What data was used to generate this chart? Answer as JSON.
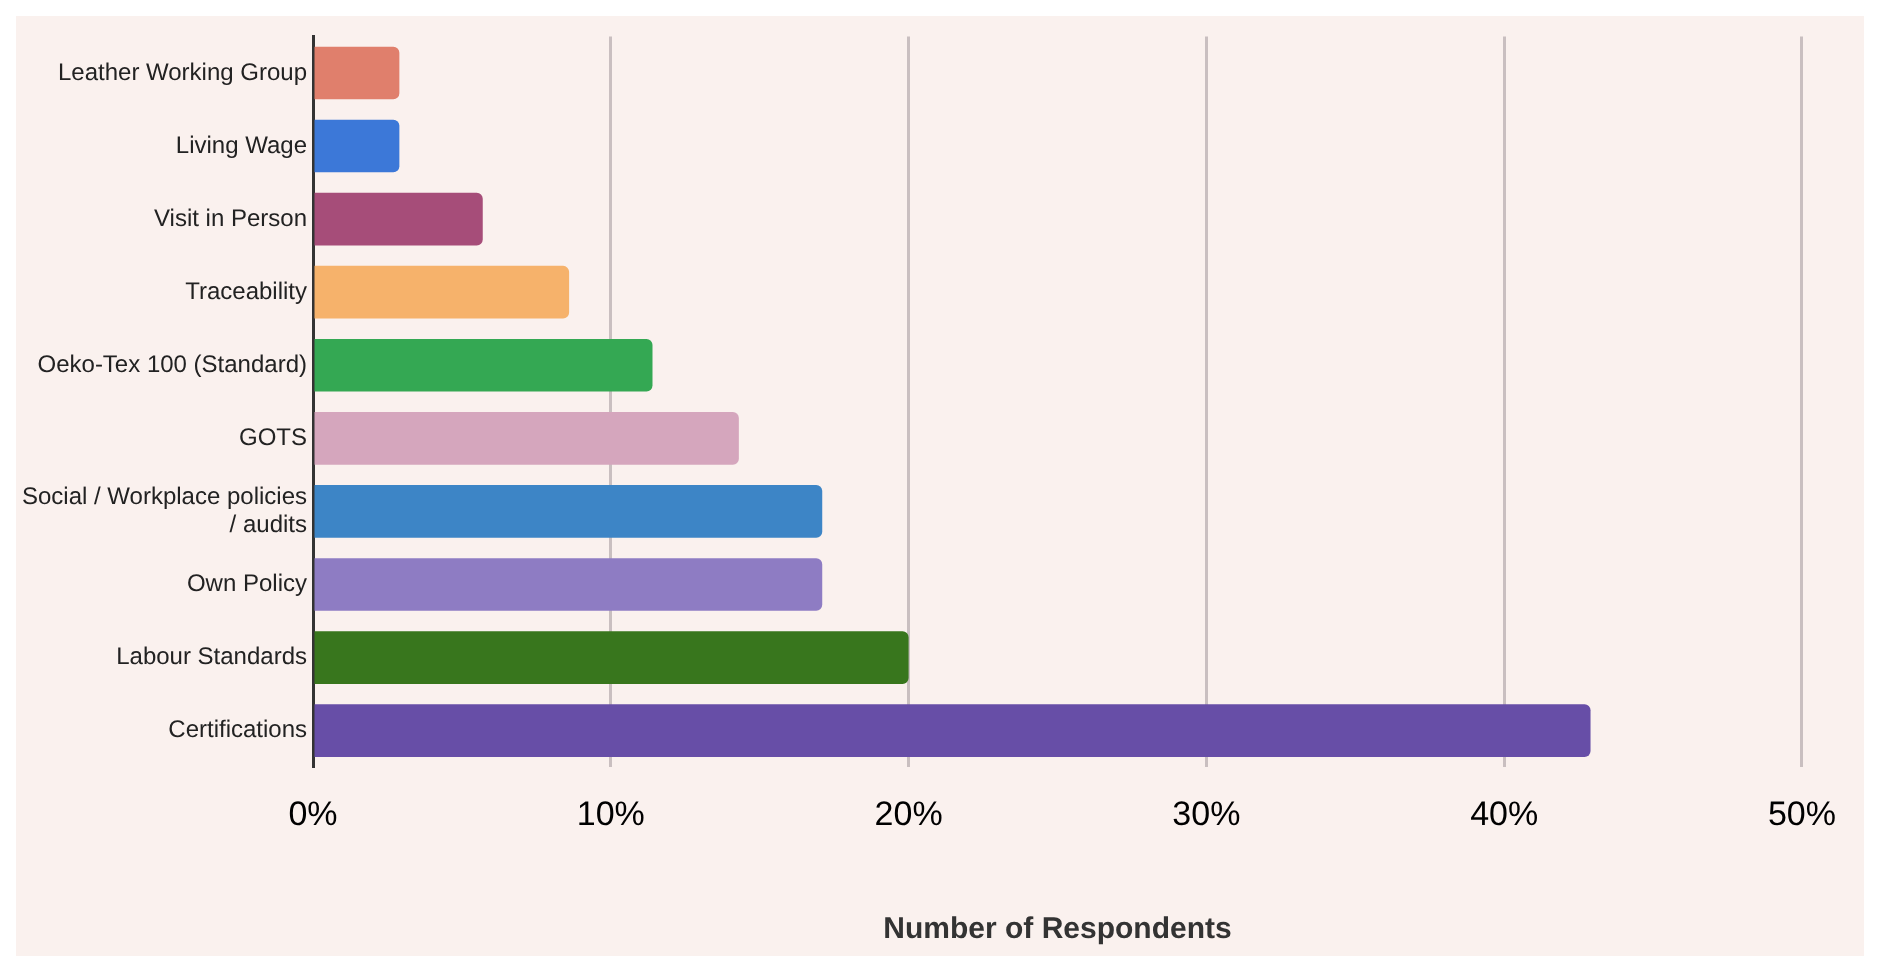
{
  "chart_data": {
    "type": "bar",
    "orientation": "horizontal",
    "xlabel": "Number of Respondents",
    "categories": [
      "Leather Working Group",
      "Living Wage",
      "Visit in Person",
      "Traceability",
      "Oeko-Tex 100 (Standard)",
      "GOTS",
      "Social / Workplace policies / audits",
      "Own Policy",
      "Labour Standards",
      "Certifications"
    ],
    "values": [
      2.9,
      2.9,
      5.7,
      8.6,
      11.4,
      14.3,
      17.1,
      17.1,
      20,
      42.9
    ],
    "colors": [
      "#e07f6c",
      "#3c78d8",
      "#a64d79",
      "#f6b26b",
      "#34a853",
      "#d5a6bd",
      "#3d85c6",
      "#8e7cc3",
      "#38761d",
      "#674ea7"
    ],
    "xlim": [
      0,
      50
    ],
    "xticks": [
      {
        "value": 0,
        "label": "0%"
      },
      {
        "value": 10,
        "label": "10%"
      },
      {
        "value": 20,
        "label": "20%"
      },
      {
        "value": 30,
        "label": "30%"
      },
      {
        "value": 40,
        "label": "40%"
      },
      {
        "value": 50,
        "label": "50%"
      }
    ],
    "grid": "x",
    "legend": false
  }
}
